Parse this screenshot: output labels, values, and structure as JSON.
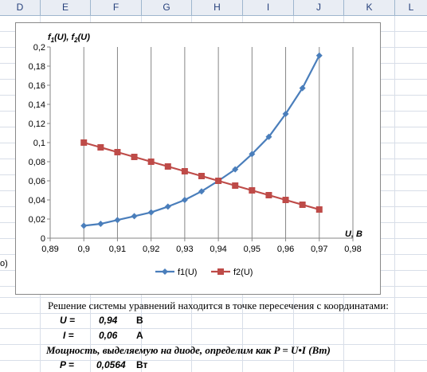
{
  "sheet": {
    "columns": [
      "D",
      "E",
      "F",
      "G",
      "H",
      "I",
      "J",
      "K",
      "L"
    ],
    "partial_left_text": "о)"
  },
  "chart_data": {
    "type": "line",
    "ylabel_html": "f<sub>1</sub>(U), f<sub>2</sub>(U)",
    "ylabel_parts": [
      "f",
      "1",
      "(U), f",
      "2",
      "(U)"
    ],
    "xlabel": "U, B",
    "xlim": [
      0.89,
      0.98
    ],
    "ylim": [
      0,
      0.2
    ],
    "x_ticks": [
      "0,89",
      "0,9",
      "0,91",
      "0,92",
      "0,93",
      "0,94",
      "0,95",
      "0,96",
      "0,97",
      "0,98"
    ],
    "y_ticks": [
      "0",
      "0,02",
      "0,04",
      "0,06",
      "0,08",
      "0,1",
      "0,12",
      "0,14",
      "0,16",
      "0,18",
      "0,2"
    ],
    "grid": "vertical",
    "legend_position": "bottom",
    "x": [
      0.9,
      0.905,
      0.91,
      0.915,
      0.92,
      0.925,
      0.93,
      0.935,
      0.94,
      0.945,
      0.95,
      0.955,
      0.96,
      0.965,
      0.97
    ],
    "series": [
      {
        "name": "f1(U)",
        "color": "#4a7ebb",
        "marker": "diamond",
        "values": [
          0.013,
          0.015,
          0.019,
          0.023,
          0.027,
          0.033,
          0.04,
          0.049,
          0.06,
          0.072,
          0.088,
          0.106,
          0.13,
          0.157,
          0.191
        ]
      },
      {
        "name": "f2(U)",
        "color": "#be4b48",
        "marker": "square",
        "values": [
          0.1,
          0.095,
          0.09,
          0.085,
          0.08,
          0.075,
          0.07,
          0.065,
          0.06,
          0.055,
          0.05,
          0.045,
          0.04,
          0.035,
          0.03
        ]
      }
    ]
  },
  "solution": {
    "intro": "Решение системы уравнений находится в точке пересечения с координатами:",
    "u_label": "U =",
    "u_value": "0,94",
    "u_unit": "В",
    "i_label": "I =",
    "i_value": "0,06",
    "i_unit": "А",
    "power_text": "Мощность, выделяемую на диоде, определим как P = U•I (Вт)",
    "p_label": "P =",
    "p_value": "0,0564",
    "p_unit": "Вт"
  }
}
